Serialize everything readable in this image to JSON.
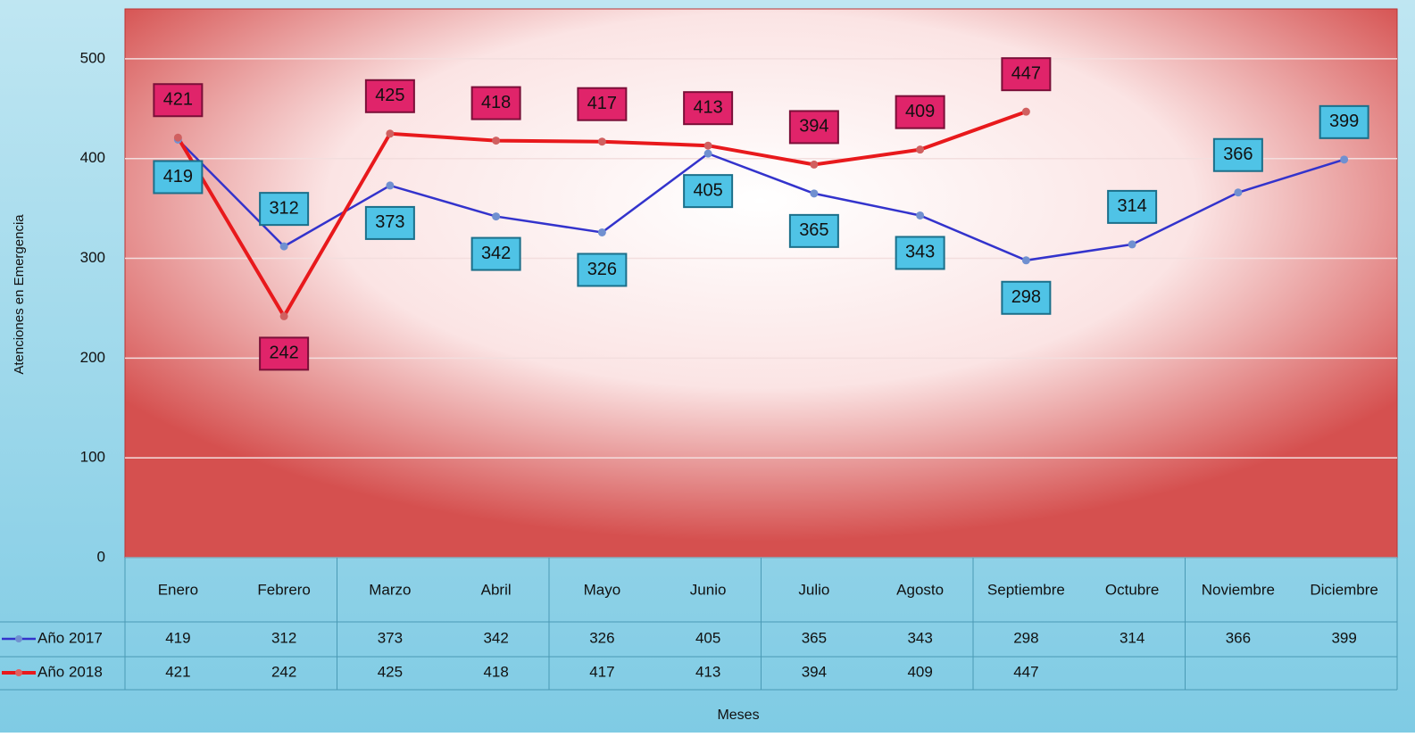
{
  "chart_data": {
    "type": "line",
    "y_label": "Atenciones en Emergencia",
    "x_label": "Meses",
    "categories": [
      "Enero",
      "Febrero",
      "Marzo",
      "Abril",
      "Mayo",
      "Junio",
      "Julio",
      "Agosto",
      "Septiembre",
      "Octubre",
      "Noviembre",
      "Diciembre"
    ],
    "series": [
      {
        "name": "Año 2017",
        "color": "#3333cc",
        "label_color": "#4fc3e6",
        "values": [
          419,
          312,
          373,
          342,
          326,
          405,
          365,
          343,
          298,
          314,
          366,
          399
        ]
      },
      {
        "name": "Año 2018",
        "color": "#e8191c",
        "label_color": "#e0246a",
        "values": [
          421,
          242,
          425,
          418,
          417,
          413,
          394,
          409,
          447,
          null,
          null,
          null
        ]
      }
    ],
    "ylim": [
      0,
      550
    ],
    "yticks": [
      0,
      100,
      200,
      300,
      400,
      500
    ],
    "grid": true
  }
}
